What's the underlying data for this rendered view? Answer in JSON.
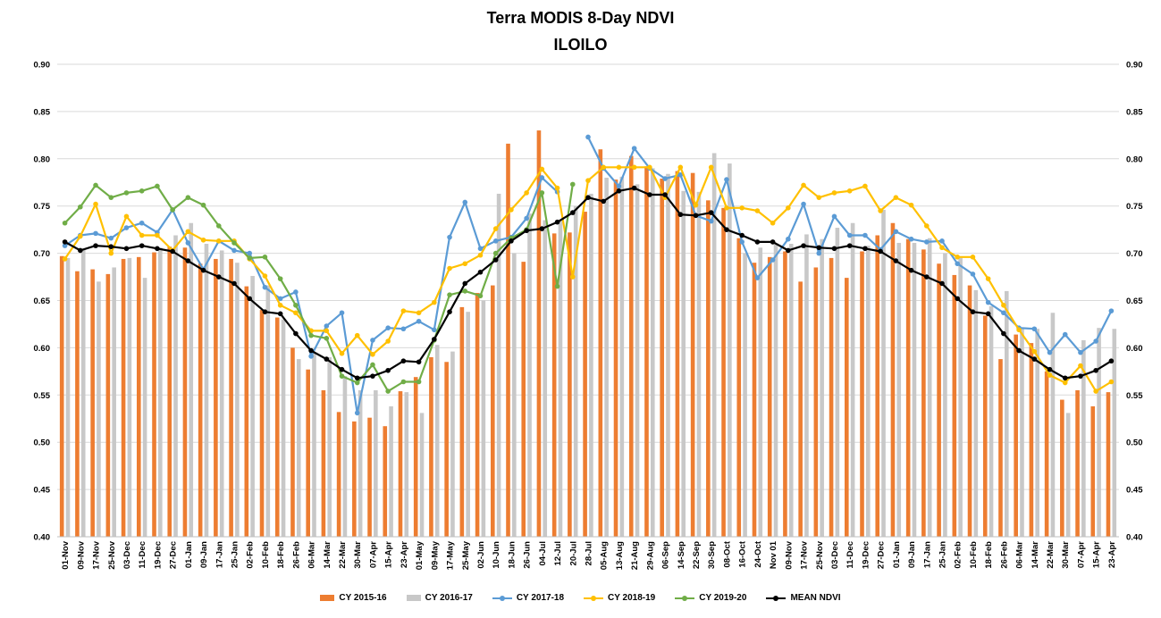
{
  "chart_data": {
    "type": "bar+line",
    "title": "Terra MODIS 8-Day  NDVI",
    "subtitle": "ILOILO",
    "ylim": [
      0.4,
      0.9
    ],
    "yticks": [
      "0.40",
      "0.45",
      "0.50",
      "0.55",
      "0.60",
      "0.65",
      "0.70",
      "0.75",
      "0.80",
      "0.85",
      "0.90"
    ],
    "xlabels": [
      "01-Nov",
      "09-Nov",
      "17-Nov",
      "25-Nov",
      "03-Dec",
      "11-Dec",
      "19-Dec",
      "27-Dec",
      "01-Jan",
      "09-Jan",
      "17-Jan",
      "25-Jan",
      "02-Feb",
      "10-Feb",
      "18-Feb",
      "26-Feb",
      "06-Mar",
      "14-Mar",
      "22-Mar",
      "30-Mar",
      "07-Apr",
      "15-Apr",
      "23-Apr",
      "01-May",
      "09-May",
      "17-May",
      "25-May",
      "02-Jun",
      "10-Jun",
      "18-Jun",
      "26-Jun",
      "04-Jul",
      "12-Jul",
      "20-Jul",
      "28-Jul",
      "05-Aug",
      "13-Aug",
      "21-Aug",
      "29-Aug",
      "06-Sep",
      "14-Sep",
      "22-Sep",
      "30-Sep",
      "08-Oct",
      "16-Oct",
      "24-Oct",
      "Nov 01",
      "09-Nov",
      "17-Nov",
      "25-Nov",
      "03-Dec",
      "11-Dec",
      "19-Dec",
      "27-Dec",
      "01-Jan",
      "09-Jan",
      "17-Jan",
      "25-Jan",
      "02-Feb",
      "10-Feb",
      "18-Feb",
      "26-Feb",
      "06-Mar",
      "14-Mar",
      "22-Mar",
      "30-Mar",
      "07-Apr",
      "15-Apr",
      "23-Apr"
    ],
    "series": [
      {
        "name": "CY 2015-16",
        "kind": "bar",
        "color": "#ED7D31",
        "values": [
          0.697,
          0.681,
          0.683,
          0.678,
          0.694,
          0.696,
          0.701,
          0.707,
          0.706,
          0.689,
          0.694,
          0.694,
          0.665,
          0.64,
          0.632,
          0.6,
          0.577,
          0.555,
          0.532,
          0.522,
          0.526,
          0.517,
          0.554,
          0.569,
          0.59,
          0.585,
          0.643,
          0.658,
          0.666,
          0.816,
          0.691,
          0.83,
          0.721,
          0.722,
          0.744,
          0.81,
          0.778,
          0.803,
          0.792,
          0.779,
          0.787,
          0.785,
          0.756,
          0.748,
          0.716,
          0.69,
          0.696,
          0.702,
          0.67,
          0.685,
          0.695,
          0.674,
          0.702,
          0.719,
          0.732,
          0.715,
          0.704,
          0.689,
          0.677,
          0.666,
          0.634,
          0.588,
          0.614,
          0.605,
          0.575,
          0.545,
          0.555,
          0.538,
          0.553
        ]
      },
      {
        "name": "CY 2016-17",
        "kind": "bar",
        "color": "#C8C8C8",
        "values": [
          0.695,
          0.705,
          0.67,
          0.685,
          0.695,
          0.674,
          0.706,
          0.719,
          0.732,
          0.71,
          0.703,
          0.69,
          0.676,
          0.666,
          0.63,
          0.588,
          0.595,
          0.59,
          0.57,
          0.555,
          0.555,
          0.538,
          0.553,
          0.531,
          0.603,
          0.596,
          0.638,
          0.65,
          0.763,
          0.7,
          0.742,
          0.735,
          0.735,
          0.75,
          0.763,
          0.78,
          0.781,
          0.773,
          0.79,
          0.784,
          0.766,
          0.765,
          0.806,
          0.795,
          0.7,
          0.706,
          0.71,
          0.71,
          0.72,
          0.715,
          0.727,
          0.732,
          0.708,
          0.746,
          0.711,
          0.711,
          0.716,
          0.7,
          0.695,
          0.661,
          0.644,
          0.66,
          0.62,
          0.62,
          0.637,
          0.531,
          0.608,
          0.621,
          0.62
        ]
      },
      {
        "name": "CY 2017-18",
        "kind": "line",
        "color": "#5B9BD5",
        "values": [
          0.708,
          0.719,
          0.721,
          0.716,
          0.727,
          0.732,
          0.722,
          0.746,
          0.711,
          0.683,
          0.713,
          0.703,
          0.7,
          0.664,
          0.652,
          0.659,
          0.591,
          0.623,
          0.637,
          0.531,
          0.608,
          0.621,
          0.62,
          0.628,
          0.619,
          0.717,
          0.754,
          0.705,
          0.713,
          0.717,
          0.737,
          0.78,
          0.765,
          null,
          0.823,
          0.79,
          0.771,
          0.811,
          0.79,
          0.779,
          0.783,
          0.74,
          0.734,
          0.778,
          0.712,
          0.674,
          0.693,
          0.715,
          0.752,
          0.7,
          0.739,
          0.719,
          0.719,
          0.704,
          0.723,
          0.715,
          0.712,
          0.713,
          0.689,
          0.678,
          0.648,
          0.637,
          0.621,
          0.62,
          0.595,
          0.614,
          0.595,
          0.607,
          0.639
        ]
      },
      {
        "name": "CY 2018-19",
        "kind": "line",
        "color": "#FFC000",
        "values": [
          0.694,
          0.718,
          0.752,
          0.7,
          0.739,
          0.719,
          0.719,
          0.703,
          0.723,
          0.714,
          0.713,
          0.713,
          0.694,
          0.676,
          0.645,
          0.637,
          0.618,
          0.618,
          0.594,
          0.613,
          0.593,
          0.607,
          0.639,
          0.637,
          0.648,
          0.684,
          0.689,
          0.698,
          0.726,
          0.746,
          0.764,
          0.789,
          0.769,
          0.675,
          0.777,
          0.791,
          0.791,
          0.791,
          0.791,
          0.759,
          0.791,
          0.751,
          0.791,
          0.748,
          0.748,
          0.745,
          0.732,
          0.748,
          0.772,
          0.759,
          0.764,
          0.766,
          0.771,
          0.745,
          0.759,
          0.751,
          0.729,
          0.706,
          0.696,
          0.696,
          0.673,
          0.645,
          0.619,
          0.596,
          0.571,
          0.563,
          0.581,
          0.554,
          0.564
        ]
      },
      {
        "name": "CY 2019-20",
        "kind": "line",
        "color": "#70AD47",
        "values": [
          0.732,
          0.749,
          0.772,
          0.759,
          0.764,
          0.766,
          0.771,
          0.746,
          0.759,
          0.751,
          0.729,
          0.711,
          0.695,
          0.696,
          0.673,
          0.645,
          0.613,
          0.61,
          0.57,
          0.563,
          0.582,
          0.554,
          0.564,
          0.564,
          0.608,
          0.656,
          0.66,
          0.655,
          0.7,
          0.716,
          0.725,
          0.764,
          0.665,
          0.773,
          null,
          null,
          null,
          null,
          null,
          null,
          null,
          null,
          null,
          null,
          null,
          null,
          null,
          null,
          null,
          null,
          null,
          null,
          null,
          null,
          null,
          null,
          null,
          null,
          null,
          null,
          null,
          null,
          null,
          null,
          null,
          null,
          null,
          null,
          null
        ]
      },
      {
        "name": "MEAN NDVI",
        "kind": "line",
        "color": "#000000",
        "values": [
          0.712,
          0.703,
          0.708,
          0.707,
          0.705,
          0.708,
          0.705,
          0.702,
          0.692,
          0.682,
          0.675,
          0.668,
          0.652,
          0.638,
          0.636,
          0.615,
          0.597,
          0.588,
          0.577,
          0.568,
          0.57,
          0.576,
          0.586,
          0.585,
          0.609,
          0.638,
          0.668,
          0.68,
          0.693,
          0.713,
          0.724,
          0.726,
          0.733,
          0.743,
          0.759,
          0.755,
          0.766,
          0.769,
          0.762,
          0.762,
          0.741,
          0.74,
          0.743,
          0.725,
          0.719,
          0.712,
          0.712,
          0.703,
          0.708,
          0.706,
          0.705,
          0.708,
          0.705,
          0.702,
          0.692,
          0.682,
          0.675,
          0.668,
          0.652,
          0.638,
          0.636,
          0.615,
          0.597,
          0.588,
          0.577,
          0.568,
          0.57,
          0.576,
          0.586
        ]
      }
    ],
    "legend_position": "bottom"
  }
}
